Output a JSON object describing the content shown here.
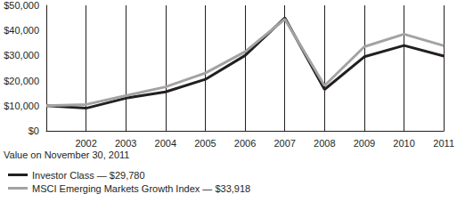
{
  "chart_data": {
    "type": "line",
    "annotation": "Value on November 30, 2011",
    "categories": [
      null,
      "2002",
      "2003",
      "2004",
      "2005",
      "2006",
      "2007",
      "2008",
      "2009",
      "2010",
      "2011"
    ],
    "series": [
      {
        "name": "Investor Class — $29,780",
        "color": "#231f20",
        "values": [
          10000,
          9000,
          13000,
          15500,
          20500,
          30000,
          45000,
          16500,
          29500,
          34000,
          29780
        ]
      },
      {
        "name": "MSCI Emerging Markets Growth Index — $33,918",
        "color": "#a3a3a3",
        "values": [
          10000,
          10500,
          14000,
          17500,
          23000,
          31500,
          44500,
          18000,
          33500,
          38500,
          33918
        ]
      }
    ],
    "ylim": [
      0,
      50000
    ],
    "yticks": [
      {
        "value": 0,
        "label": "$0"
      },
      {
        "value": 10000,
        "label": "$10,000"
      },
      {
        "value": 20000,
        "label": "$20,000"
      },
      {
        "value": 30000,
        "label": "$30,000"
      },
      {
        "value": 40000,
        "label": "$40,000"
      },
      {
        "value": 50000,
        "label": "$50,000"
      }
    ],
    "grid": true,
    "legend": "bottom-left"
  }
}
